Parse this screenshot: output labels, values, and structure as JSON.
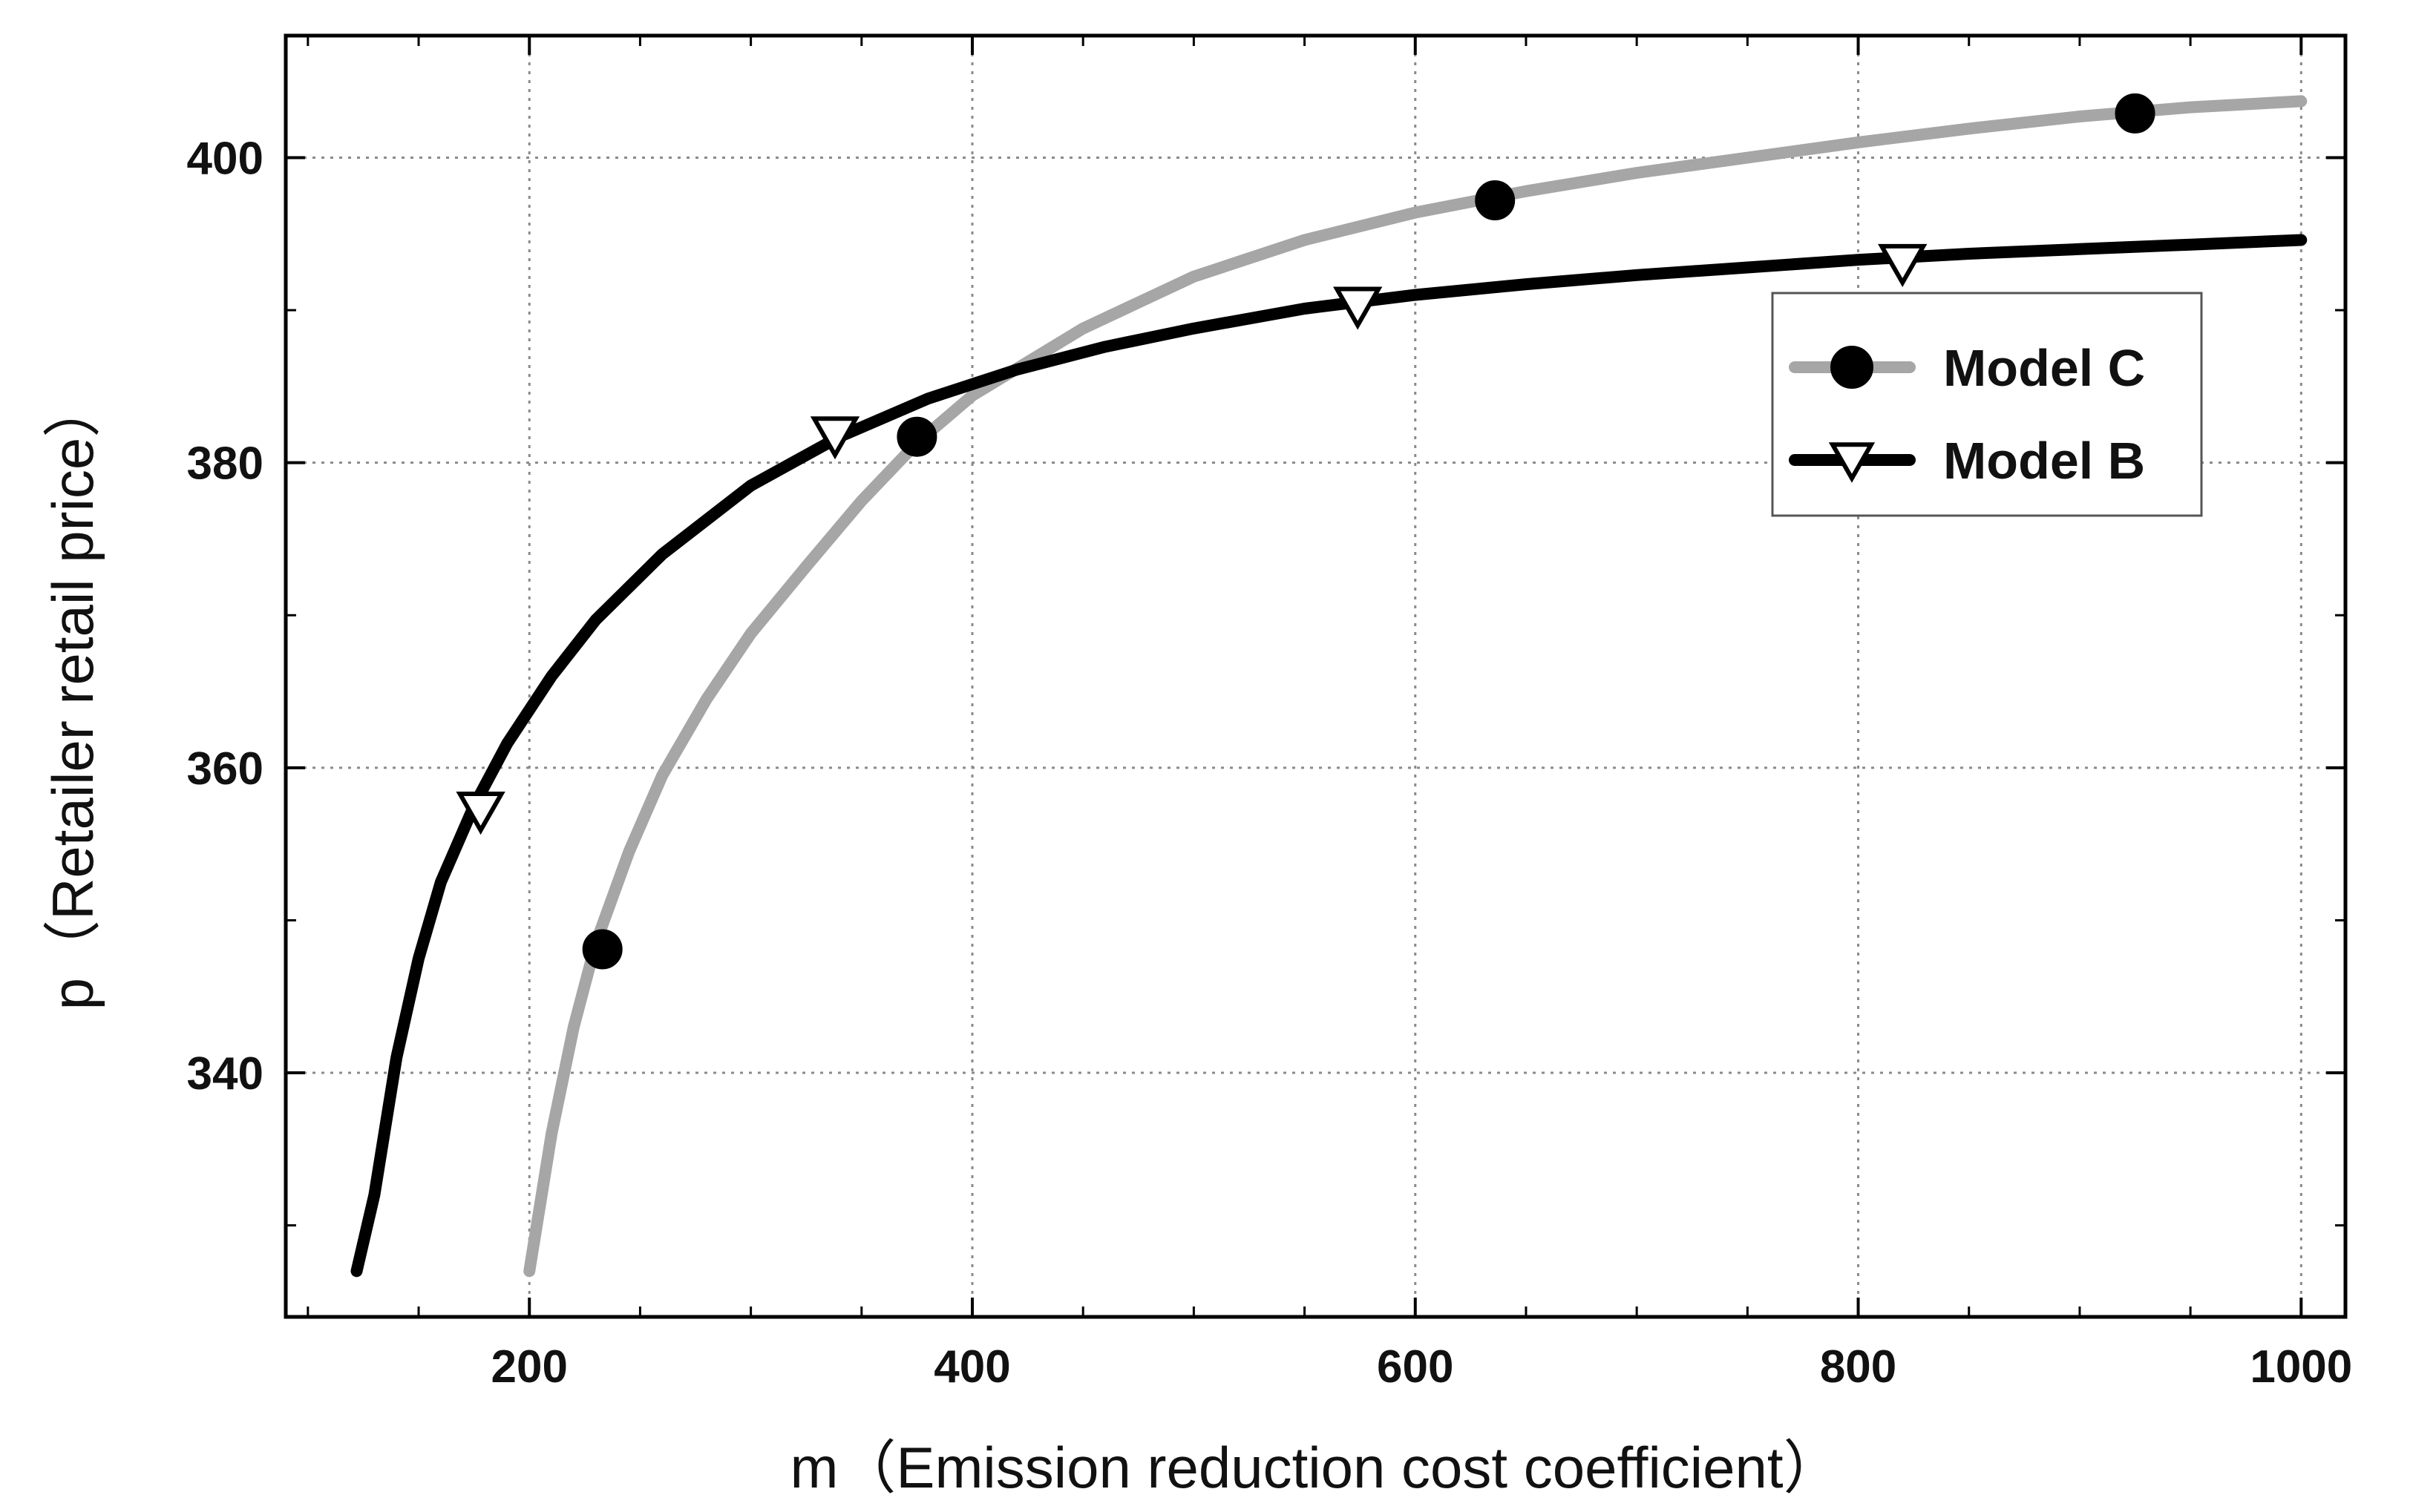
{
  "chart_data": {
    "type": "line",
    "title": "",
    "xlabel": "m（Emission reduction cost coefficient）",
    "ylabel": "p（Retailer retail price）",
    "xlim": [
      90,
      1020
    ],
    "ylim": [
      324,
      408
    ],
    "xticks": [
      200,
      400,
      600,
      800,
      1000
    ],
    "yticks": [
      340,
      360,
      380,
      400
    ],
    "grid": true,
    "legend_position": "upper-right",
    "series": [
      {
        "name": "Model C",
        "color": "#a6a6a6",
        "marker": "filled-circle",
        "marker_color": "#000000",
        "x": [
          200,
          210,
          220,
          230,
          245,
          260,
          280,
          300,
          325,
          350,
          375,
          400,
          450,
          500,
          550,
          600,
          650,
          700,
          750,
          800,
          850,
          900,
          950,
          1000
        ],
        "y": [
          327,
          336,
          343,
          348.5,
          354.5,
          359.5,
          364.5,
          368.8,
          373.2,
          377.5,
          381.3,
          384.4,
          388.8,
          392.2,
          394.6,
          396.4,
          397.8,
          399,
          400,
          401,
          401.9,
          402.7,
          403.3,
          403.7
        ],
        "markers_x": [
          233,
          375,
          636,
          925
        ],
        "markers_y": [
          348.1,
          381.7,
          397.2,
          402.9
        ]
      },
      {
        "name": "Model B",
        "color": "#000000",
        "marker": "open-down-triangle",
        "marker_color": "#000000",
        "x": [
          122,
          130,
          140,
          150,
          160,
          175,
          190,
          210,
          230,
          260,
          300,
          340,
          380,
          420,
          460,
          500,
          550,
          600,
          650,
          700,
          750,
          800,
          850,
          900,
          950,
          1000
        ],
        "y": [
          327,
          332,
          341,
          347.5,
          352.5,
          357.5,
          361.6,
          366,
          369.7,
          374,
          378.5,
          381.7,
          384.2,
          386.1,
          387.6,
          388.8,
          390.1,
          391,
          391.7,
          392.3,
          392.8,
          393.3,
          393.7,
          394,
          394.3,
          394.6
        ],
        "markers_x": [
          178,
          338,
          574,
          820
        ],
        "markers_y": [
          357.2,
          381.8,
          390.3,
          393.1
        ]
      }
    ]
  }
}
